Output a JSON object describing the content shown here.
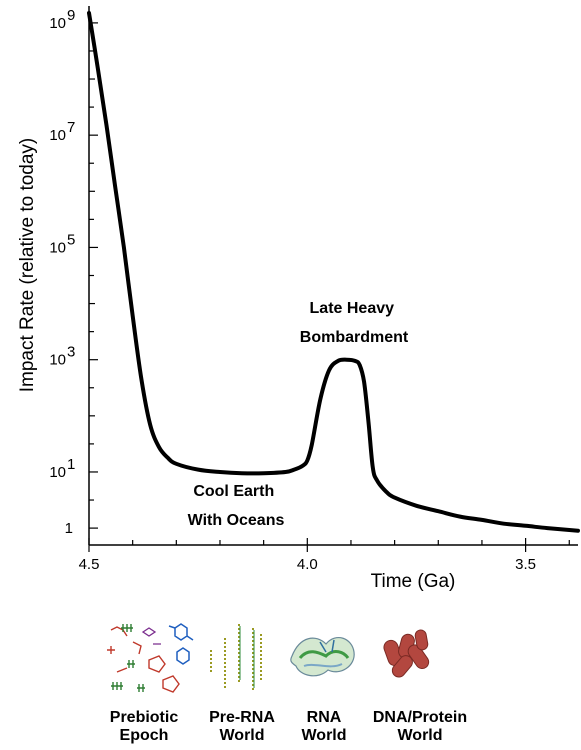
{
  "chart_data": {
    "type": "line",
    "xlabel": "Time (Ga)",
    "ylabel": "Impact Rate (relative to today)",
    "x_reversed": true,
    "y_scale": "log",
    "xlim": [
      4.5,
      3.38
    ],
    "ylim": [
      0.5,
      2000000000
    ],
    "x_ticks": [
      {
        "value": 4.5,
        "label": "4.5"
      },
      {
        "value": 4.0,
        "label": "4.0"
      },
      {
        "value": 3.5,
        "label": "3.5"
      }
    ],
    "y_ticks": [
      {
        "value": 1,
        "label": "1"
      },
      {
        "value": 10,
        "base": "10",
        "exp": "1"
      },
      {
        "value": 1000,
        "base": "10",
        "exp": "3"
      },
      {
        "value": 100000,
        "base": "10",
        "exp": "5"
      },
      {
        "value": 10000000,
        "base": "10",
        "exp": "7"
      },
      {
        "value": 1000000000,
        "base": "10",
        "exp": "9"
      }
    ],
    "series": [
      {
        "color": "#000000",
        "x": [
          4.5,
          4.48,
          4.46,
          4.44,
          4.42,
          4.4,
          4.38,
          4.36,
          4.34,
          4.32,
          4.3,
          4.25,
          4.2,
          4.15,
          4.1,
          4.05,
          4.03,
          4.01,
          4.0,
          3.99,
          3.97,
          3.95,
          3.93,
          3.91,
          3.89,
          3.88,
          3.87,
          3.86,
          3.85,
          3.84,
          3.82,
          3.8,
          3.75,
          3.7,
          3.65,
          3.6,
          3.55,
          3.5,
          3.45,
          3.38
        ],
        "y": [
          1500000000,
          160000000,
          15000000,
          1200000,
          100000,
          6000,
          450,
          70,
          28,
          18,
          14,
          11,
          10,
          9.5,
          9.5,
          10,
          11,
          13,
          16,
          30,
          200,
          650,
          950,
          1000,
          950,
          800,
          400,
          80,
          12,
          7,
          4.5,
          3.5,
          2.5,
          2,
          1.6,
          1.4,
          1.2,
          1.1,
          1.0,
          0.9
        ]
      }
    ],
    "annotations": [
      {
        "text": [
          "Late Heavy",
          "Bombardment"
        ]
      },
      {
        "text": [
          "Cool Earth",
          "With Oceans"
        ]
      }
    ]
  },
  "worlds": [
    {
      "label": [
        "Prebiotic",
        "Epoch"
      ],
      "icon": "molecules-icon"
    },
    {
      "label": [
        "Pre-RNA",
        "World"
      ],
      "icon": "polymer-strands-icon"
    },
    {
      "label": [
        "RNA",
        "World"
      ],
      "icon": "ribozyme-icon"
    },
    {
      "label": [
        "DNA/Protein",
        "World"
      ],
      "icon": "cells-icon"
    }
  ]
}
